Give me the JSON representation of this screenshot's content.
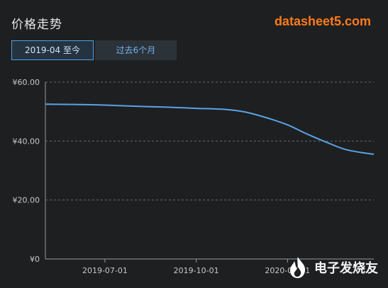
{
  "header": {
    "title": "价格走势",
    "site": "datasheet5.com"
  },
  "tabs": [
    {
      "label": "2019-04 至今",
      "active": true
    },
    {
      "label": "过去6个月",
      "active": false
    }
  ],
  "watermark": {
    "text": "电子发烧友"
  },
  "colors": {
    "line": "#5aa3e6",
    "accent": "#ff7a1a",
    "grid": "#6a6a6a",
    "axis_text": "#c8c8c8"
  },
  "chart_data": {
    "type": "line",
    "title": "",
    "xlabel": "",
    "ylabel": "",
    "ylim": [
      0,
      60
    ],
    "y_ticks": [
      "¥0",
      "¥20.00",
      "¥40.00",
      "¥60.00"
    ],
    "x_ticks": [
      "2019-07-01",
      "2019-10-01",
      "2020-01-01"
    ],
    "x_range": [
      "2019-05-02",
      "2020-03-28"
    ],
    "grid": true,
    "series": [
      {
        "x": [
          "2019-05-02",
          "2019-06-01",
          "2019-07-01",
          "2019-08-01",
          "2019-09-01",
          "2019-10-01",
          "2019-10-31",
          "2019-11-20",
          "2019-12-10",
          "2020-01-01",
          "2020-01-20",
          "2020-02-10",
          "2020-03-01",
          "2020-03-28"
        ],
        "values": [
          52.5,
          52.4,
          52.2,
          51.8,
          51.5,
          51.1,
          50.7,
          49.8,
          48.0,
          45.5,
          42.5,
          39.5,
          37.0,
          35.5
        ]
      }
    ]
  }
}
